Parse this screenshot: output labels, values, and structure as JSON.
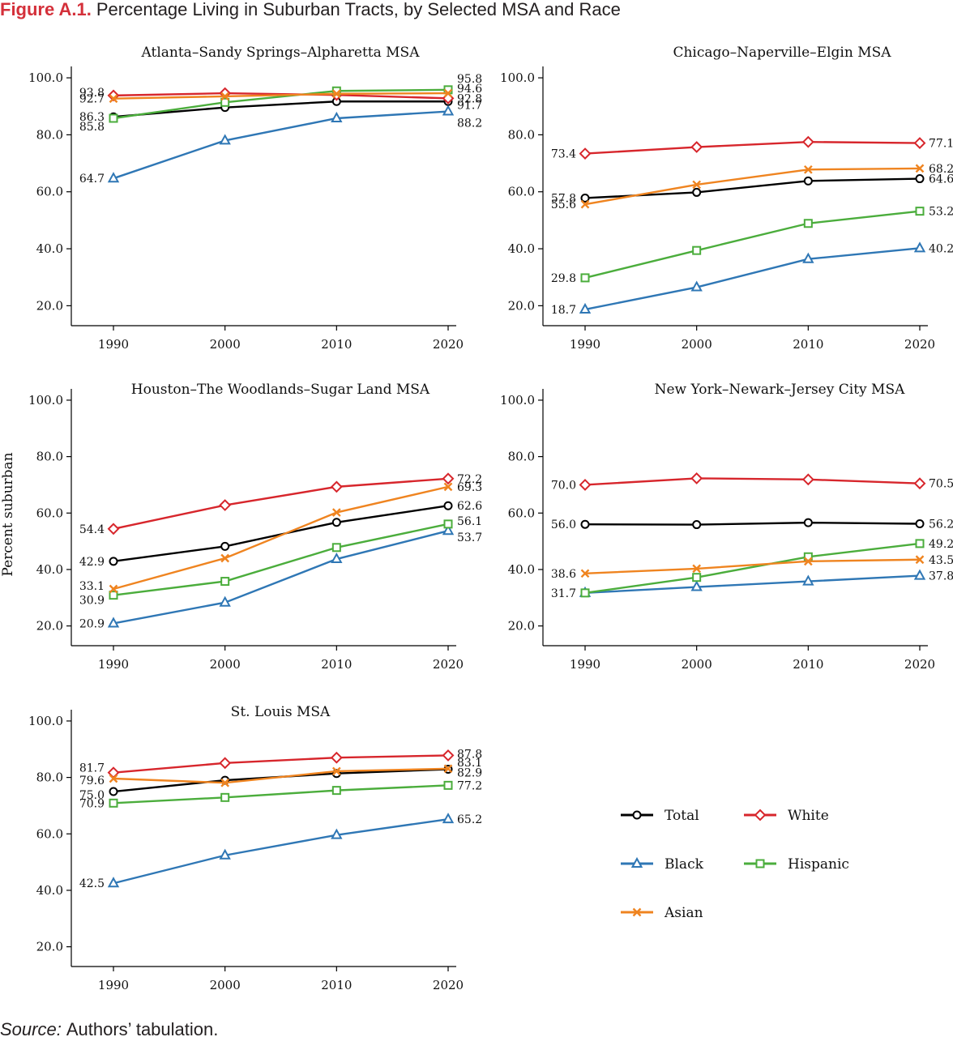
{
  "figure": {
    "label": "Figure A.1.",
    "title": "Percentage Living in Suburban Tracts, by Selected MSA and Race",
    "y_axis_label": "Percent suburban",
    "source_label": "Source:",
    "source_text": "Authors’ tabulation."
  },
  "legend": [
    {
      "key": "total",
      "label": "Total"
    },
    {
      "key": "white",
      "label": "White"
    },
    {
      "key": "black",
      "label": "Black"
    },
    {
      "key": "hispanic",
      "label": "Hispanic"
    },
    {
      "key": "asian",
      "label": "Asian"
    }
  ],
  "styles": {
    "total": {
      "color": "#000000",
      "marker": "circle"
    },
    "white": {
      "color": "#d7262c",
      "marker": "diamond"
    },
    "black": {
      "color": "#2f77b5",
      "marker": "triangle"
    },
    "hispanic": {
      "color": "#4bad3c",
      "marker": "square"
    },
    "asian": {
      "color": "#ef8420",
      "marker": "x"
    }
  },
  "chart_data": [
    {
      "type": "line",
      "title": "Atlanta–Sandy Springs–Alpharetta MSA",
      "x": [
        1990,
        2000,
        2010,
        2020
      ],
      "x_tick_labels": [
        "1990",
        "2000",
        "2010",
        "2020"
      ],
      "y_tick_labels": [
        "20.0",
        "40.0",
        "60.0",
        "80.0",
        "100.0"
      ],
      "ylim": [
        13,
        104
      ],
      "series": [
        {
          "key": "total",
          "values": [
            86.3,
            89.6,
            91.7,
            91.7
          ],
          "start_label": "86.3",
          "end_label": "91.7"
        },
        {
          "key": "white",
          "values": [
            93.8,
            94.6,
            94.0,
            92.8
          ],
          "start_label": "93.8",
          "end_label": "92.8"
        },
        {
          "key": "black",
          "values": [
            64.7,
            78.0,
            85.8,
            88.2
          ],
          "start_label": "64.7",
          "end_label": "88.2"
        },
        {
          "key": "hispanic",
          "values": [
            85.8,
            91.4,
            95.4,
            95.8
          ],
          "start_label": "85.8",
          "end_label": "95.8"
        },
        {
          "key": "asian",
          "values": [
            92.7,
            93.5,
            94.4,
            94.6
          ],
          "start_label": "92.7",
          "end_label": "94.6"
        }
      ]
    },
    {
      "type": "line",
      "title": "Chicago–Naperville–Elgin MSA",
      "x": [
        1990,
        2000,
        2010,
        2020
      ],
      "x_tick_labels": [
        "1990",
        "2000",
        "2010",
        "2020"
      ],
      "y_tick_labels": [
        "20.0",
        "40.0",
        "60.0",
        "80.0",
        "100.0"
      ],
      "ylim": [
        13,
        104
      ],
      "series": [
        {
          "key": "total",
          "values": [
            57.8,
            59.8,
            63.8,
            64.6
          ],
          "start_label": "57.8",
          "end_label": "64.6"
        },
        {
          "key": "white",
          "values": [
            73.4,
            75.7,
            77.5,
            77.1
          ],
          "start_label": "73.4",
          "end_label": "77.1"
        },
        {
          "key": "black",
          "values": [
            18.7,
            26.5,
            36.4,
            40.2
          ],
          "start_label": "18.7",
          "end_label": "40.2"
        },
        {
          "key": "hispanic",
          "values": [
            29.8,
            39.4,
            48.9,
            53.2
          ],
          "start_label": "29.8",
          "end_label": "53.2"
        },
        {
          "key": "asian",
          "values": [
            55.6,
            62.5,
            67.8,
            68.2
          ],
          "start_label": "55.6",
          "end_label": "68.2"
        }
      ]
    },
    {
      "type": "line",
      "title": "Houston–The Woodlands–Sugar Land MSA",
      "x": [
        1990,
        2000,
        2010,
        2020
      ],
      "x_tick_labels": [
        "1990",
        "2000",
        "2010",
        "2020"
      ],
      "y_tick_labels": [
        "20.0",
        "40.0",
        "60.0",
        "80.0",
        "100.0"
      ],
      "ylim": [
        13,
        104
      ],
      "series": [
        {
          "key": "total",
          "values": [
            42.9,
            48.2,
            56.7,
            62.6
          ],
          "start_label": "42.9",
          "end_label": "62.6"
        },
        {
          "key": "white",
          "values": [
            54.4,
            62.8,
            69.3,
            72.2
          ],
          "start_label": "54.4",
          "end_label": "72.2"
        },
        {
          "key": "black",
          "values": [
            20.9,
            28.3,
            43.7,
            53.7
          ],
          "start_label": "20.9",
          "end_label": "53.7"
        },
        {
          "key": "hispanic",
          "values": [
            30.9,
            35.8,
            47.8,
            56.1
          ],
          "start_label": "30.9",
          "end_label": "56.1"
        },
        {
          "key": "asian",
          "values": [
            33.1,
            44.0,
            60.2,
            69.3
          ],
          "start_label": "33.1",
          "end_label": "69.3"
        }
      ]
    },
    {
      "type": "line",
      "title": "New York–Newark–Jersey City MSA",
      "x": [
        1990,
        2000,
        2010,
        2020
      ],
      "x_tick_labels": [
        "1990",
        "2000",
        "2010",
        "2020"
      ],
      "y_tick_labels": [
        "20.0",
        "40.0",
        "60.0",
        "80.0",
        "100.0"
      ],
      "ylim": [
        13,
        104
      ],
      "series": [
        {
          "key": "total",
          "values": [
            56.0,
            55.9,
            56.6,
            56.2
          ],
          "start_label": "56.0",
          "end_label": "56.2"
        },
        {
          "key": "white",
          "values": [
            70.0,
            72.3,
            71.9,
            70.5
          ],
          "start_label": "70.0",
          "end_label": "70.5"
        },
        {
          "key": "black",
          "values": [
            31.7,
            33.8,
            35.8,
            37.8
          ],
          "start_label": "31.7",
          "end_label": "37.8"
        },
        {
          "key": "hispanic",
          "values": [
            31.7,
            37.2,
            44.5,
            49.2
          ],
          "start_label": "",
          "end_label": "49.2"
        },
        {
          "key": "asian",
          "values": [
            38.6,
            40.3,
            42.9,
            43.5
          ],
          "start_label": "38.6",
          "end_label": "43.5"
        }
      ]
    },
    {
      "type": "line",
      "title": "St. Louis MSA",
      "x": [
        1990,
        2000,
        2010,
        2020
      ],
      "x_tick_labels": [
        "1990",
        "2000",
        "2010",
        "2020"
      ],
      "y_tick_labels": [
        "20.0",
        "40.0",
        "60.0",
        "80.0",
        "100.0"
      ],
      "ylim": [
        13,
        104
      ],
      "series": [
        {
          "key": "total",
          "values": [
            75.0,
            79.0,
            81.4,
            82.9
          ],
          "start_label": "75.0",
          "end_label": "82.9"
        },
        {
          "key": "white",
          "values": [
            81.7,
            85.1,
            87.0,
            87.8
          ],
          "start_label": "81.7",
          "end_label": "87.8"
        },
        {
          "key": "black",
          "values": [
            42.5,
            52.4,
            59.6,
            65.2
          ],
          "start_label": "42.5",
          "end_label": "65.2"
        },
        {
          "key": "hispanic",
          "values": [
            70.9,
            72.9,
            75.4,
            77.2
          ],
          "start_label": "70.9",
          "end_label": "77.2"
        },
        {
          "key": "asian",
          "values": [
            79.6,
            78.1,
            82.2,
            83.1
          ],
          "start_label": "79.6",
          "end_label": "83.1"
        }
      ]
    }
  ]
}
